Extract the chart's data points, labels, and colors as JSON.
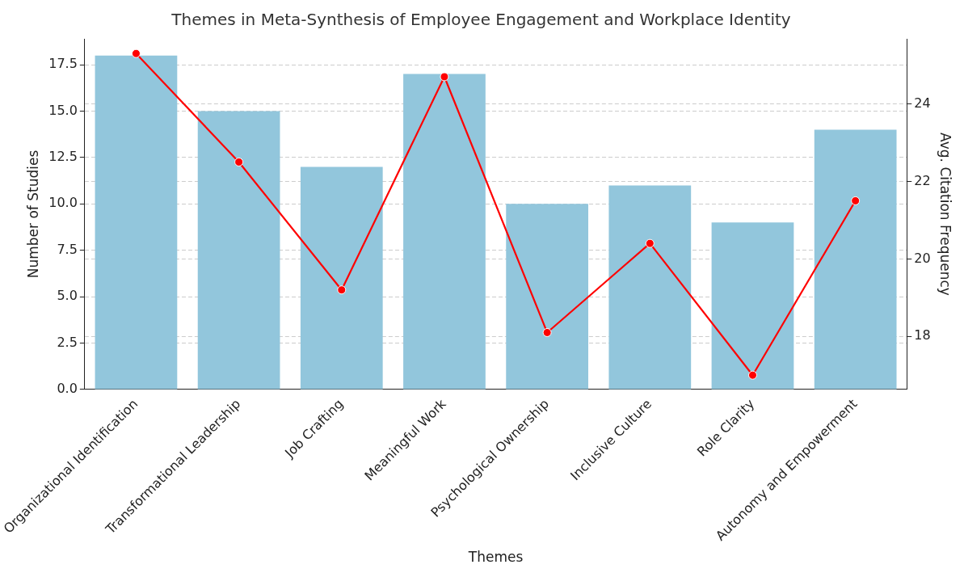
{
  "chart_data": {
    "type": "bar",
    "title": "Themes in Meta-Synthesis of Employee Engagement and Workplace Identity",
    "xlabel": "Themes",
    "ylabel": "Number of Studies",
    "y2label": "Avg. Citation Frequency",
    "categories": [
      "Organizational Identification",
      "Transformational Leadership",
      "Job Crafting",
      "Meaningful Work",
      "Psychological Ownership",
      "Inclusive Culture",
      "Role Clarity",
      "Autonomy and Empowerment"
    ],
    "series": [
      {
        "color": "#92c6dc",
        "values": [
          18,
          15,
          12,
          17,
          10,
          11,
          9,
          14
        ]
      },
      {
        "type": "line",
        "axis": "y2",
        "color": "#ff0000",
        "values": [
          25.3,
          22.5,
          19.2,
          24.7,
          18.1,
          20.4,
          17.0,
          21.5
        ]
      }
    ],
    "ylim": [
      0,
      18.9
    ],
    "yticks": [
      {
        "value": 0,
        "label": "0.0"
      },
      {
        "value": 2.5,
        "label": "2.5"
      },
      {
        "value": 5,
        "label": "5.0"
      },
      {
        "value": 7.5,
        "label": "7.5"
      },
      {
        "value": 10,
        "label": "10.0"
      },
      {
        "value": 12.5,
        "label": "12.5"
      },
      {
        "value": 15,
        "label": "15.0"
      },
      {
        "value": 17.5,
        "label": "17.5"
      }
    ],
    "y2lim": [
      16.63,
      25.68
    ],
    "y2ticks": [
      18,
      20,
      22,
      24
    ],
    "grid": true,
    "legend": false,
    "marker": "circle",
    "line_style": "solid"
  }
}
